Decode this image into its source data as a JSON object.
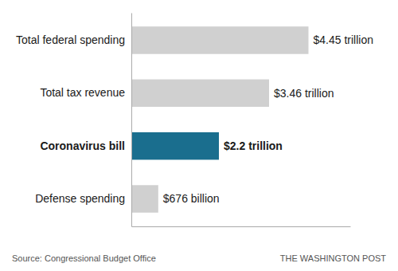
{
  "chart_data": {
    "type": "bar",
    "orientation": "horizontal",
    "categories": [
      "Defense spending",
      "Coronavirus bill",
      "Total tax revenue",
      "Total federal spending"
    ],
    "values": [
      0.676,
      2.2,
      3.46,
      4.45
    ],
    "value_labels": [
      "$676 billion",
      "$2.2 trillion",
      "$3.46 trillion",
      "$4.45 trillion"
    ],
    "colors": [
      "#d0d0d0",
      "#1a6e8e",
      "#d0d0d0",
      "#d0d0d0"
    ],
    "xlim": [
      0,
      5.5
    ],
    "data_labels": true,
    "tick_labels": "y",
    "annotations": [
      "Source: Congressional Budget Office",
      "THE WASHINGTON POST"
    ]
  }
}
